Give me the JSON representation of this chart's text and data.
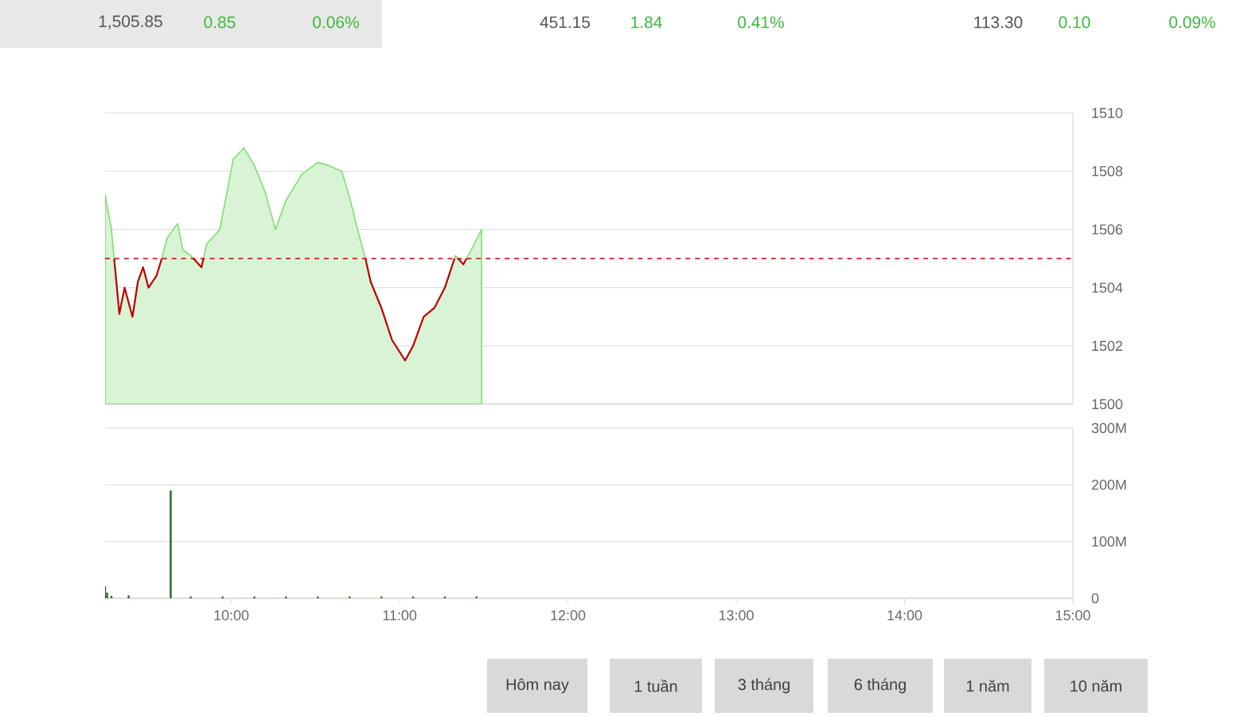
{
  "chart_data": [
    {
      "type": "area",
      "xlim": [
        9.25,
        15
      ],
      "ylim": [
        1500,
        1510
      ],
      "yticks": [
        1500,
        1502,
        1504,
        1506,
        1508,
        1510
      ],
      "xticks": [
        {
          "value": 10,
          "label": null
        },
        {
          "value": 11,
          "label": null
        },
        {
          "value": 12,
          "label": null
        },
        {
          "value": 13,
          "label": null
        },
        {
          "value": 14,
          "label": null
        },
        {
          "value": 15,
          "label": null
        }
      ],
      "tick_labels": "y",
      "grid": "y",
      "series": [
        {
          "color": "#7fdc74",
          "x": [
            9.25,
            9.288,
            9.304,
            9.335,
            9.366,
            9.413,
            9.445,
            9.476,
            9.508,
            9.555,
            9.587,
            9.618,
            9.681,
            9.712,
            9.759,
            9.823,
            9.854,
            9.932,
            10.011,
            10.074,
            10.137,
            10.2,
            10.262,
            10.325,
            10.42,
            10.514,
            10.577,
            10.656,
            10.703,
            10.75,
            10.797,
            10.828,
            10.892,
            10.955,
            11.033,
            11.08,
            11.143,
            11.206,
            11.269,
            11.332,
            11.379,
            11.426,
            11.487
          ],
          "values": [
            1507.2,
            1506.0,
            1505.0,
            1503.1,
            1504.0,
            1503.0,
            1504.2,
            1504.7,
            1504.0,
            1504.4,
            1505.0,
            1505.7,
            1506.2,
            1505.3,
            1505.1,
            1504.7,
            1505.5,
            1506.0,
            1508.4,
            1508.8,
            1508.2,
            1507.3,
            1506.0,
            1507.0,
            1507.9,
            1508.3,
            1508.2,
            1508.0,
            1507.1,
            1506.0,
            1505.0,
            1504.2,
            1503.3,
            1502.2,
            1501.5,
            1502.0,
            1503.0,
            1503.3,
            1504.0,
            1505.1,
            1504.8,
            1505.3,
            1506.0
          ]
        }
      ],
      "ref_lines": [
        {
          "axis": "y",
          "value": 1505,
          "color": "#c00000",
          "line_style": "dashed"
        }
      ]
    },
    {
      "type": "bar",
      "xlim": [
        9.25,
        15
      ],
      "ylim": [
        0,
        300000000
      ],
      "yticks": [
        0,
        {
          "value": 100000000,
          "label": "100M"
        },
        {
          "value": 200000000,
          "label": "200M"
        },
        {
          "value": 300000000,
          "label": "300M"
        }
      ],
      "xticks": [
        {
          "value": 10,
          "label": "10:00"
        },
        {
          "value": 11,
          "label": "11:00"
        },
        {
          "value": 12,
          "label": "12:00"
        },
        {
          "value": 13,
          "label": "13:00"
        },
        {
          "value": 14,
          "label": "14:00"
        },
        {
          "value": 15,
          "label": "15:00"
        }
      ],
      "grid": "y",
      "x": [
        9.25,
        9.262,
        9.288,
        9.39,
        9.64,
        9.759,
        9.948,
        10.137,
        10.325,
        10.514,
        10.703,
        10.892,
        11.08,
        11.269,
        11.457
      ],
      "values": [
        21000000,
        10000000,
        4000000,
        5000000,
        190000000,
        3000000,
        3000000,
        3000000,
        3000000,
        3000000,
        3000000,
        3000000,
        3000000,
        3000000,
        3000000
      ],
      "color": "#1f6b1f"
    },
    {
      "type": "other",
      "annotations": [
        "1,505.85",
        "0.85",
        "0.06%",
        "451.15",
        "1.84",
        "0.41%",
        "113.30",
        "0.10",
        "0.09%",
        "Hôm nay",
        "1 tuần",
        "3 tháng",
        "6 tháng",
        "1 năm",
        "10 năm"
      ]
    }
  ]
}
